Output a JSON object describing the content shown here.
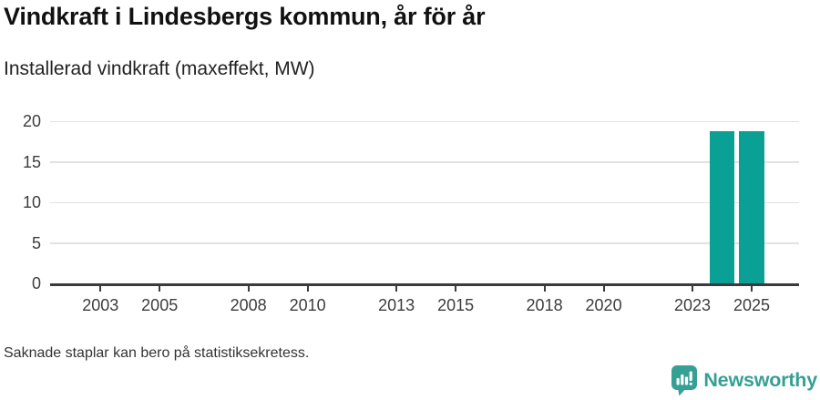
{
  "header": {
    "title": "Vindkraft i Lindesbergs kommun, år för år",
    "subtitle": "Installerad vindkraft (maxeffekt, MW)"
  },
  "footer": {
    "note": "Saknade staplar kan bero på statistiksekretess.",
    "brand": "Newsworthy"
  },
  "colors": {
    "bar": "#0aa096",
    "logo": "#35a093",
    "axis": "#3b3b3b",
    "grid": "#e2e2e2",
    "label": "#3d3d3d"
  },
  "icons": {
    "logo": "newsworthy-speech-bubble-bar-chart-icon"
  },
  "chart_data": {
    "type": "bar",
    "title": "Vindkraft i Lindesbergs kommun, år för år",
    "subtitle": "Installerad vindkraft (maxeffekt, MW)",
    "xlabel": "",
    "ylabel": "Installerad vindkraft (maxeffekt, MW)",
    "unit": "MW",
    "xlim": [
      2001.3,
      2026.6
    ],
    "ylim": [
      0,
      20
    ],
    "y_ticks": [
      0,
      5,
      10,
      15,
      20
    ],
    "x_ticks": [
      2003,
      2005,
      2008,
      2010,
      2013,
      2015,
      2018,
      2020,
      2023,
      2025
    ],
    "grid": true,
    "legend": "none",
    "bar_width_years": 0.85,
    "categories": [
      2002,
      2003,
      2004,
      2005,
      2006,
      2007,
      2008,
      2009,
      2010,
      2011,
      2012,
      2013,
      2014,
      2015,
      2016,
      2017,
      2018,
      2019,
      2020,
      2021,
      2022,
      2023,
      2024,
      2025
    ],
    "values": [
      null,
      null,
      null,
      null,
      null,
      null,
      null,
      null,
      null,
      null,
      null,
      null,
      null,
      null,
      null,
      null,
      null,
      null,
      null,
      null,
      null,
      null,
      18.8,
      18.8
    ],
    "note": "Bars shown only for 2024 and 2025 (18.8 MW each); earlier years have no bars"
  }
}
